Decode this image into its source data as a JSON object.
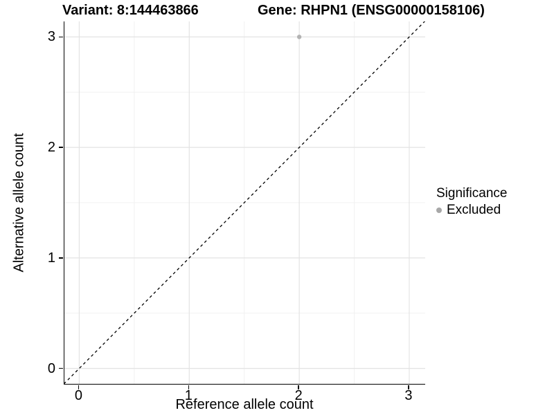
{
  "header": {
    "variant_title": "Variant: 8:144463866",
    "gene_title": "Gene: RHPN1 (ENSG00000158106)"
  },
  "chart_data": {
    "type": "scatter",
    "title": "Variant: 8:144463866   Gene: RHPN1 (ENSG00000158106)",
    "xlabel": "Reference allele count",
    "ylabel": "Alternative allele count",
    "xlim": [
      -0.135,
      3.145
    ],
    "ylim": [
      -0.14,
      3.14
    ],
    "x_ticks": [
      0,
      1,
      2,
      3
    ],
    "y_ticks": [
      0,
      1,
      2,
      3
    ],
    "x_minor_gridlines": [
      0.5,
      1.5,
      2.5
    ],
    "y_minor_gridlines": [
      0.5,
      1.5,
      2.5
    ],
    "grid": true,
    "legend_position": "right",
    "identity_line": {
      "style": "dashed",
      "from": [
        -0.14,
        -0.14
      ],
      "to": [
        3.15,
        3.15
      ],
      "color": "#000000"
    },
    "series": [
      {
        "name": "Excluded",
        "color": "#b3b3b3",
        "points": [
          {
            "x": 2,
            "y": 3
          }
        ]
      }
    ]
  },
  "legend": {
    "title": "Significance",
    "items": [
      {
        "label": "Excluded",
        "color": "#a8a8a8"
      }
    ]
  },
  "colors": {
    "grid_major": "#e3e3e3",
    "grid_minor": "#f1f1f1",
    "axis_line": "#000000",
    "text": "#000000"
  }
}
